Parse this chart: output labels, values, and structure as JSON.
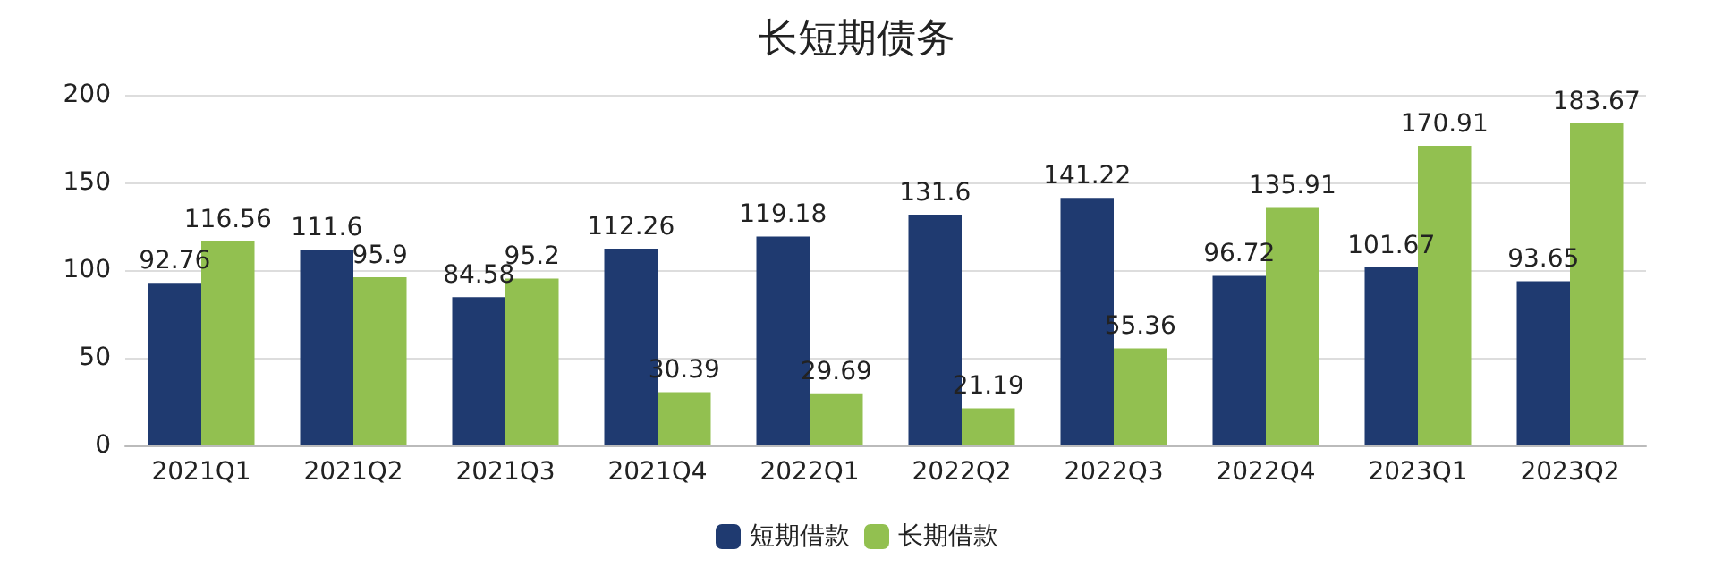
{
  "chart_data": {
    "type": "bar",
    "title": "长短期债务",
    "categories": [
      "2021Q1",
      "2021Q2",
      "2021Q3",
      "2021Q4",
      "2022Q1",
      "2022Q2",
      "2022Q3",
      "2022Q4",
      "2023Q1",
      "2023Q2"
    ],
    "series": [
      {
        "name": "短期借款",
        "color": "#1f3a70",
        "values": [
          92.76,
          111.6,
          84.58,
          112.26,
          119.18,
          131.6,
          141.22,
          96.72,
          101.67,
          93.65
        ]
      },
      {
        "name": "长期借款",
        "color": "#92c050",
        "values": [
          116.56,
          95.9,
          95.2,
          30.39,
          29.69,
          21.19,
          55.36,
          135.91,
          170.91,
          183.67
        ]
      }
    ],
    "ylim": [
      0,
      200
    ],
    "yticks": [
      0,
      50,
      100,
      150,
      200
    ],
    "grid": "y",
    "legend": "bottom",
    "data_labels": true
  }
}
